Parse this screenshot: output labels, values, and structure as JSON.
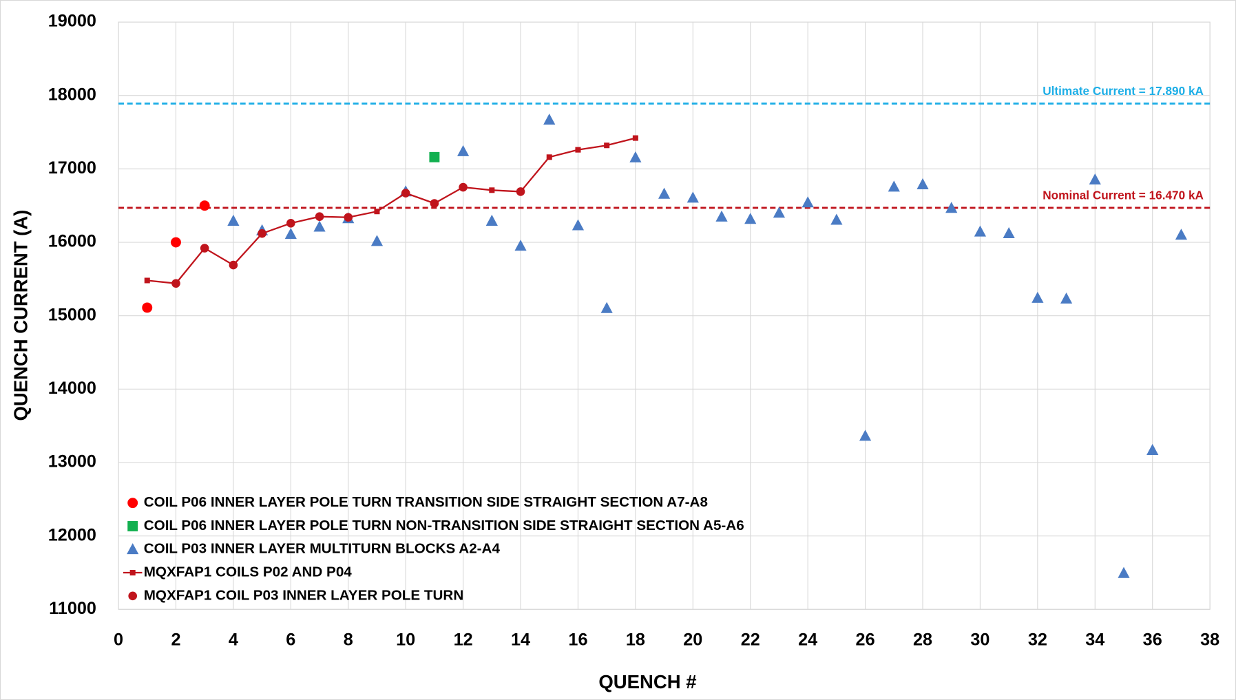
{
  "chart_data": {
    "type": "scatter",
    "xlabel": "QUENCH #",
    "ylabel": "QUENCH CURRENT (A)",
    "xlim": [
      0,
      38
    ],
    "xticks": [
      0,
      2,
      4,
      6,
      8,
      10,
      12,
      14,
      16,
      18,
      20,
      22,
      24,
      26,
      28,
      30,
      32,
      34,
      36,
      38
    ],
    "ylim": [
      11000,
      19000
    ],
    "yticks": [
      11000,
      12000,
      13000,
      14000,
      15000,
      16000,
      17000,
      18000,
      19000
    ],
    "grid": true,
    "legend": "lower left",
    "reference_lines": [
      {
        "label": "Ultimate Current = 17.890 kA",
        "value": 17890,
        "color": "#1eaee6"
      },
      {
        "label": "Nominal Current = 16.470 kA",
        "value": 16470,
        "color": "#c0141c"
      }
    ],
    "series": [
      {
        "name": "COIL P06 INNER LAYER POLE TURN TRANSITION SIDE STRAIGHT SECTION A7-A8",
        "color": "#ff0000",
        "marker": "circle",
        "x": [
          1,
          2,
          3
        ],
        "values": [
          15110,
          16000,
          16500
        ]
      },
      {
        "name": "COIL P06 INNER LAYER POLE TURN NON-TRANSITION SIDE STRAIGHT SECTION A5-A6",
        "color": "#12b050",
        "marker": "square",
        "x": [
          11
        ],
        "values": [
          17160
        ]
      },
      {
        "name": "COIL P03 INNER LAYER MULTITURN BLOCKS A2-A4",
        "color": "#4a7bc4",
        "marker": "triangle",
        "x": [
          4,
          5,
          6,
          7,
          8,
          9,
          10,
          12,
          13,
          14,
          15,
          16,
          17,
          18,
          19,
          20,
          21,
          22,
          23,
          24,
          25,
          26,
          27,
          28,
          29,
          30,
          31,
          32,
          33,
          34,
          35,
          36,
          37
        ],
        "values": [
          16290,
          16160,
          16110,
          16210,
          16325,
          16014,
          16690,
          17238,
          16290,
          15950,
          17668,
          16229,
          15101,
          17153,
          16658,
          16605,
          16347,
          16315,
          16400,
          16540,
          16304,
          13361,
          16755,
          16787,
          16465,
          16143,
          16121,
          15241,
          15230,
          16852,
          11492,
          13168,
          16100
        ]
      },
      {
        "name": "MQXFAP1 COILS P02 AND P04",
        "color": "#c0141c",
        "marker": "line-square",
        "x": [
          1,
          2,
          3,
          4,
          5,
          6,
          7,
          8,
          9,
          10,
          11,
          12,
          13,
          14,
          15,
          16,
          17,
          18
        ],
        "values": [
          15480,
          15440,
          15920,
          15690,
          16120,
          16260,
          16350,
          16340,
          16420,
          16670,
          16530,
          16750,
          16710,
          16690,
          17160,
          17260,
          17320,
          17420
        ]
      },
      {
        "name": "MQXFAP1 COIL P03 INNER LAYER POLE TURN",
        "color": "#c0141c",
        "marker": "circle-small",
        "x": [
          2,
          3,
          4,
          5,
          6,
          7,
          8,
          10,
          11,
          12,
          14
        ],
        "values": [
          15440,
          15920,
          15690,
          16120,
          16260,
          16350,
          16340,
          16670,
          16530,
          16750,
          16690
        ]
      }
    ]
  }
}
